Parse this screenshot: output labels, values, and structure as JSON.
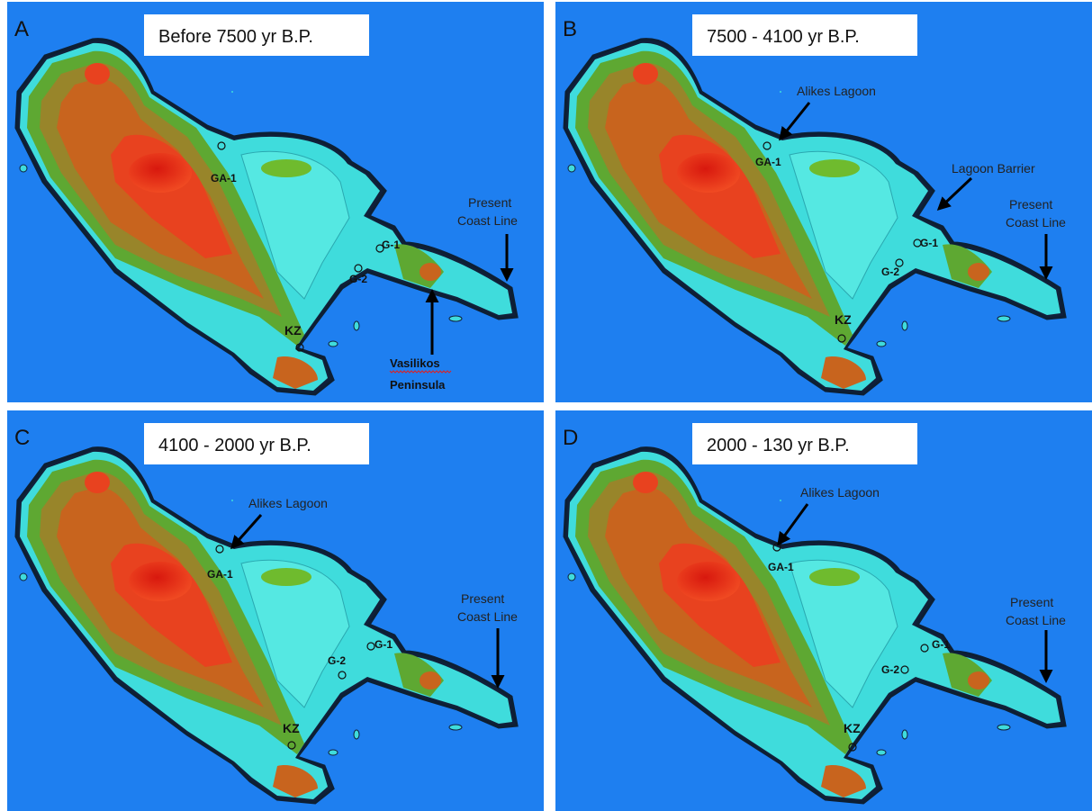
{
  "panels": [
    {
      "letter": "A",
      "title": "Before 7500 yr B.P.",
      "labels": {
        "ga1": "GA-1",
        "g1": "G-1",
        "g2": "G-2",
        "kz": "KZ",
        "coast": [
          "Present",
          "Coast Line"
        ],
        "peninsula": [
          "Vasilikos",
          "Peninsula"
        ]
      }
    },
    {
      "letter": "B",
      "title": "7500  -  4100 yr  B.P.",
      "labels": {
        "alikes": "Alikes Lagoon",
        "ga1": "GA-1",
        "barrier": "Lagoon Barrier",
        "coast": [
          "Present",
          "Coast Line"
        ],
        "g1": "G-1",
        "g2": "G-2",
        "kz": "KZ"
      }
    },
    {
      "letter": "C",
      "title": "4100  -  2000 yr B.P.",
      "labels": {
        "alikes": "Alikes Lagoon",
        "ga1": "GA-1",
        "coast": [
          "Present",
          "Coast Line"
        ],
        "g1": "G-1",
        "g2": "G-2",
        "kz": "KZ"
      }
    },
    {
      "letter": "D",
      "title": "2000  -  130  yr B.P.",
      "labels": {
        "alikes": "Alikes Lagoon",
        "ga1": "GA-1",
        "coast": [
          "Present",
          "Coast Line"
        ],
        "g1": "G-1",
        "g2": "G-2",
        "kz": "KZ"
      }
    }
  ]
}
